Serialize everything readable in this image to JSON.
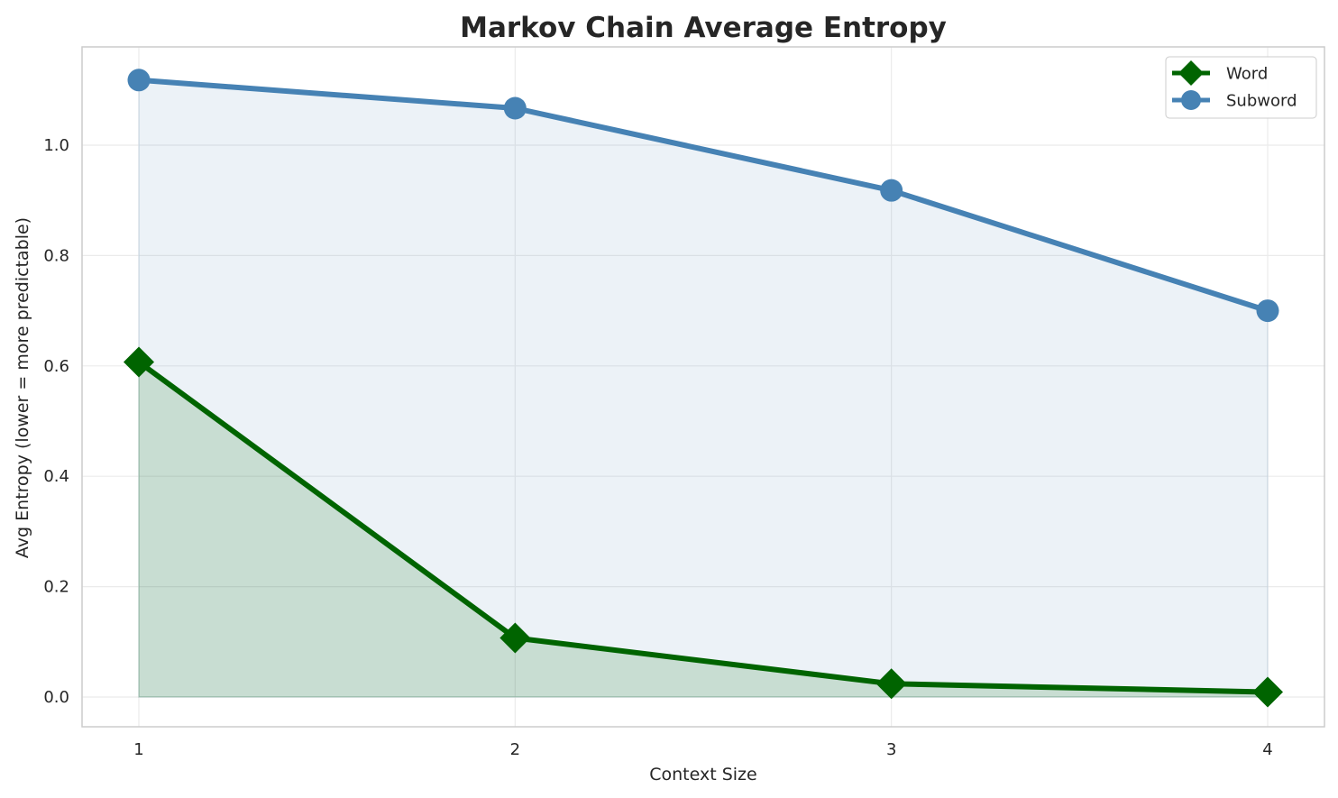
{
  "chart_data": {
    "type": "line",
    "title": "Markov Chain Average Entropy",
    "xlabel": "Context Size",
    "ylabel": "Avg Entropy (lower = more predictable)",
    "x": [
      1,
      2,
      3,
      4
    ],
    "xticks": [
      "1",
      "2",
      "3",
      "4"
    ],
    "yticks": [
      "0.0",
      "0.2",
      "0.4",
      "0.6",
      "0.8",
      "1.0"
    ],
    "xlim": [
      0.85,
      4.15
    ],
    "ylim": [
      -0.055,
      1.175
    ],
    "grid": true,
    "legend_position": "top-right",
    "series": [
      {
        "name": "Word",
        "values": [
          0.607,
          0.107,
          0.024,
          0.009
        ],
        "color": "#006400",
        "marker": "diamond",
        "fill_alpha": 0.15
      },
      {
        "name": "Subword",
        "values": [
          1.118,
          1.067,
          0.918,
          0.7
        ],
        "color": "#4682b4",
        "marker": "circle",
        "fill_alpha": 0.1
      }
    ]
  }
}
